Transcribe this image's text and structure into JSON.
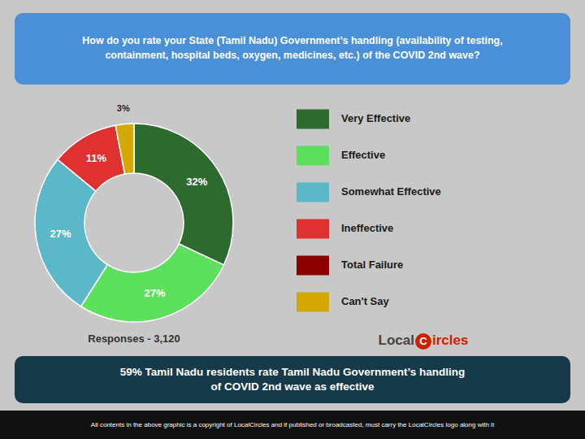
{
  "chart_data": {
    "type": "pie",
    "title": "How do you rate your State (Tamil Nadu) Government’s handling (availability of testing,\ncontainment, hospital beds, oxygen, medicines, etc.) of the COVID 2nd wave?",
    "categories": [
      "Very Effective",
      "Effective",
      "Somewhat Effective",
      "Ineffective",
      "Total Failure",
      "Can't Say"
    ],
    "values": [
      32,
      27,
      27,
      11,
      null,
      3
    ],
    "value_labels": [
      "32%",
      "27%",
      "27%",
      "11%",
      null,
      "3%"
    ],
    "colors": [
      "#2d6a2d",
      "#5de05d",
      "#5ab8c8",
      "#e03030",
      "#8b0000",
      "#d4a800"
    ],
    "data_labels": true,
    "legend": "right",
    "annotations": [
      "Responses - 3,120",
      "59% Tamil Nadu residents rate Tamil Nadu Government’s handling\nof COVID 2nd wave as effective",
      "All contents in the above graphic is a copyright of LocalCircles and if published or broadcasted, must carry the LocalCircles logo along with it",
      "Local",
      "C",
      "ircles"
    ]
  }
}
